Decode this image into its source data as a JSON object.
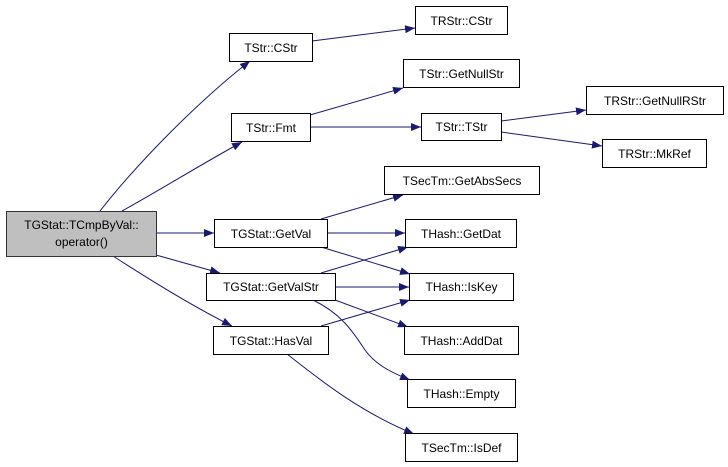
{
  "diagram": {
    "type": "call-graph",
    "edge_color": "#191970",
    "root": {
      "line1": "TGStat::TCmpByVal::",
      "line2": "operator()",
      "fill": "#bfbfbf"
    },
    "nodes": {
      "tstr_cstr": "TStr::CStr",
      "tstr_fmt": "TStr::Fmt",
      "getval": "TGStat::GetVal",
      "getvalstr": "TGStat::GetValStr",
      "hasval": "TGStat::HasVal",
      "trstr_cstr": "TRStr::CStr",
      "getnullstr": "TStr::GetNullStr",
      "tstr_tstr": "TStr::TStr",
      "getnullrstr": "TRStr::GetNullRStr",
      "mkref": "TRStr::MkRef",
      "getabssecs": "TSecTm::GetAbsSecs",
      "getdat": "THash::GetDat",
      "iskey": "THash::IsKey",
      "adddat": "THash::AddDat",
      "empty": "THash::Empty",
      "isdef": "TSecTm::IsDef"
    },
    "edges": [
      [
        "root",
        "tstr_cstr"
      ],
      [
        "root",
        "tstr_fmt"
      ],
      [
        "root",
        "getval"
      ],
      [
        "root",
        "getvalstr"
      ],
      [
        "root",
        "hasval"
      ],
      [
        "tstr_cstr",
        "trstr_cstr"
      ],
      [
        "tstr_fmt",
        "getnullstr"
      ],
      [
        "tstr_fmt",
        "tstr_tstr"
      ],
      [
        "tstr_tstr",
        "getnullrstr"
      ],
      [
        "tstr_tstr",
        "mkref"
      ],
      [
        "getval",
        "getabssecs"
      ],
      [
        "getval",
        "getdat"
      ],
      [
        "getval",
        "iskey"
      ],
      [
        "getvalstr",
        "getdat"
      ],
      [
        "getvalstr",
        "iskey"
      ],
      [
        "getvalstr",
        "adddat"
      ],
      [
        "getvalstr",
        "empty"
      ],
      [
        "hasval",
        "iskey"
      ],
      [
        "hasval",
        "isdef"
      ]
    ]
  }
}
